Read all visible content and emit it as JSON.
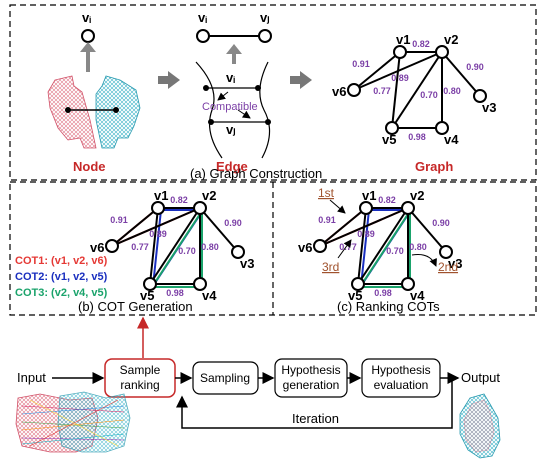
{
  "graph_construction": {
    "caption": "(a) Graph Construction",
    "node_label": "Node",
    "edge_label": "Edge",
    "graph_label": "Graph",
    "vi": "vᵢ",
    "vj": "vⱼ",
    "compatible": "Compatible"
  },
  "graph": {
    "nodes": [
      "v1",
      "v2",
      "v3",
      "v4",
      "v5",
      "v6"
    ],
    "weights": {
      "v1_v2": "0.82",
      "v1_v6": "0.91",
      "v2_v6": "0.89",
      "v2_v3": "0.90",
      "v2_v5": "0.70",
      "v2_v4": "0.80",
      "v1_v5": "0.77",
      "v5_v4": "0.98"
    }
  },
  "cot_generation": {
    "caption": "(b) COT Generation",
    "cot1": "COT1: (v1, v2, v6)",
    "cot2": "COT2: (v1, v2, v5)",
    "cot3": "COT3: (v2, v4, v5)",
    "colors": {
      "cot1": "#e53935",
      "cot2": "#1a2fbf",
      "cot3": "#1aa36b"
    }
  },
  "ranking_cots": {
    "caption": "(c) Ranking COTs",
    "first": "1st",
    "second": "2nd",
    "third": "3rd"
  },
  "pipeline": {
    "input": "Input",
    "sample_ranking_line1": "Sample",
    "sample_ranking_line2": "ranking",
    "sampling": "Sampling",
    "hyp_gen_line1": "Hypothesis",
    "hyp_gen_line2": "generation",
    "hyp_eval_line1": "Hypothesis",
    "hyp_eval_line2": "evaluation",
    "output": "Output",
    "iteration": "Iteration"
  }
}
